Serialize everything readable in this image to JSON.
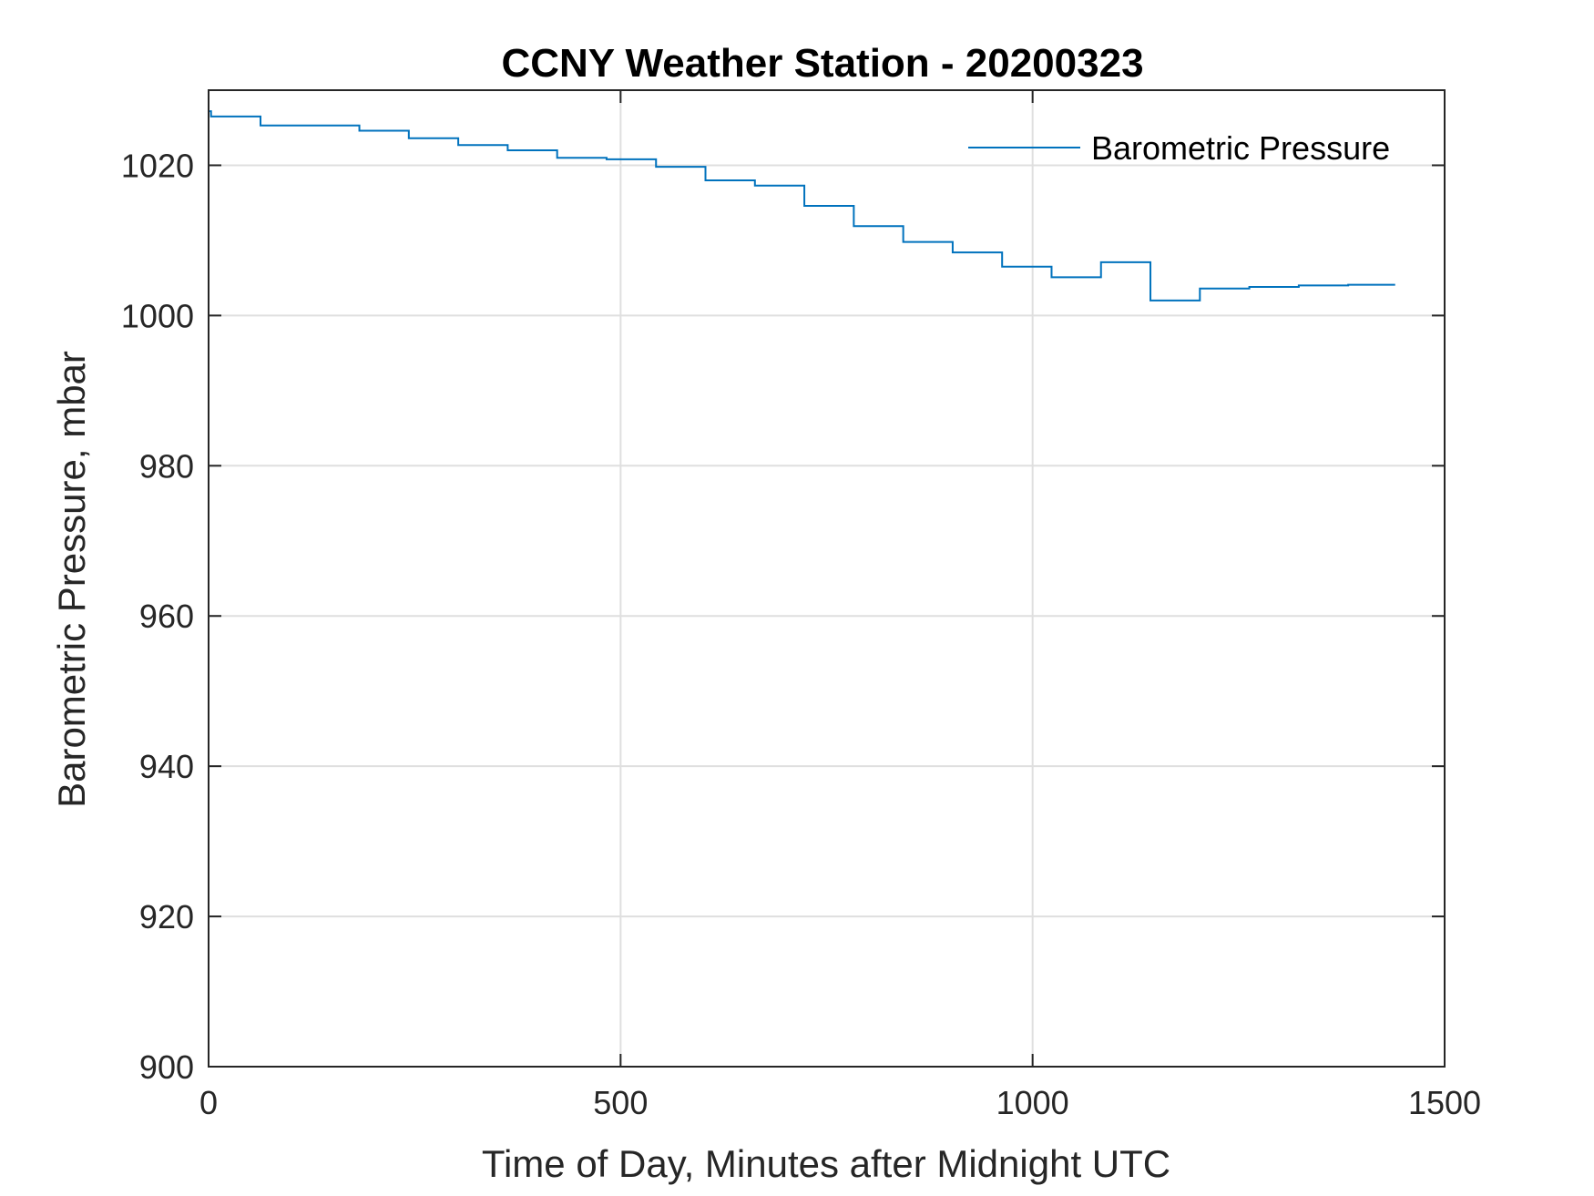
{
  "chart_data": {
    "type": "line",
    "title": "CCNY Weather Station - 20200323",
    "xlabel": "Time of Day, Minutes after Midnight UTC",
    "ylabel": "Barometric Pressure, mbar",
    "xlim": [
      0,
      1500
    ],
    "ylim": [
      900,
      1030
    ],
    "xticks": [
      0,
      500,
      1000,
      1500
    ],
    "xtick_labels": [
      "0",
      "500",
      "1000",
      "1500"
    ],
    "yticks": [
      900,
      920,
      940,
      960,
      980,
      1000,
      1020
    ],
    "ytick_labels": [
      "900",
      "920",
      "940",
      "960",
      "980",
      "1000",
      "1020"
    ],
    "grid": true,
    "legend_position": "top-right",
    "series": [
      {
        "name": "Barometric Pressure",
        "color": "#0072BD",
        "x": [
          0,
          3,
          3,
          63,
          63,
          183,
          183,
          243,
          243,
          303,
          303,
          363,
          363,
          423,
          423,
          483,
          483,
          543,
          543,
          603,
          603,
          663,
          663,
          723,
          723,
          783,
          783,
          843,
          843,
          903,
          903,
          963,
          963,
          1023,
          1023,
          1083,
          1083,
          1143,
          1143,
          1203,
          1203,
          1263,
          1263,
          1323,
          1323,
          1383,
          1383,
          1440
        ],
        "y": [
          1027.2,
          1027.2,
          1026.5,
          1026.5,
          1025.3,
          1025.3,
          1024.6,
          1024.6,
          1023.6,
          1023.6,
          1022.7,
          1022.7,
          1022.0,
          1022.0,
          1021.0,
          1021.0,
          1020.8,
          1020.8,
          1019.8,
          1019.8,
          1018.0,
          1018.0,
          1017.3,
          1017.3,
          1014.6,
          1014.6,
          1011.9,
          1011.9,
          1009.8,
          1009.8,
          1008.4,
          1008.4,
          1006.5,
          1006.5,
          1005.1,
          1005.1,
          1007.1,
          1007.1,
          1002.0,
          1002.0,
          1003.6,
          1003.6,
          1003.8,
          1003.8,
          1004.0,
          1004.0,
          1004.1,
          1004.1
        ]
      }
    ]
  }
}
